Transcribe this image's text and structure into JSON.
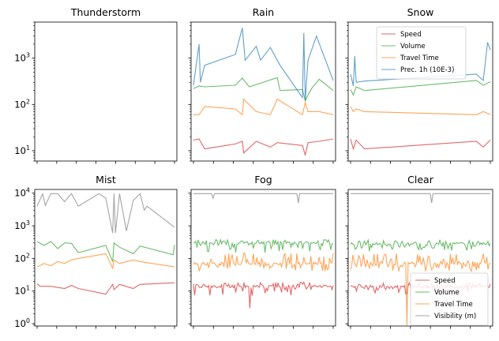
{
  "colors": {
    "Speed": "#d62728",
    "Volume": "#2ca02c",
    "Travel Time": "#ff7f0e",
    "Prec. 1h (10E-3)": "#1f77b4",
    "Visibility (m)": "#7f7f7f"
  },
  "chart_data": [
    {
      "type": "line",
      "title": "Thunderstorm",
      "yscale": "log",
      "ylim": [
        6,
        6000
      ],
      "ytick_labels": [
        "10^1",
        "10^2",
        "10^3"
      ],
      "series": []
    },
    {
      "type": "line",
      "title": "Rain",
      "yscale": "log",
      "ylim": [
        6,
        6000
      ],
      "series": [
        {
          "name": "Speed",
          "x": [
            0,
            0.04,
            0.08,
            0.3,
            0.35,
            0.36,
            0.45,
            0.55,
            0.6,
            0.78,
            0.8,
            0.82,
            0.9,
            1.0
          ],
          "values": [
            17,
            18,
            11,
            14,
            16,
            9,
            16,
            12,
            15,
            13,
            8,
            15,
            16,
            18
          ]
        },
        {
          "name": "Volume",
          "x": [
            0,
            0.04,
            0.08,
            0.3,
            0.35,
            0.4,
            0.6,
            0.62,
            0.78,
            0.8,
            0.82,
            0.85,
            0.9,
            1.0
          ],
          "values": [
            220,
            250,
            240,
            260,
            370,
            240,
            380,
            200,
            210,
            120,
            160,
            230,
            350,
            200
          ]
        },
        {
          "name": "Travel Time",
          "x": [
            0,
            0.04,
            0.08,
            0.3,
            0.35,
            0.36,
            0.45,
            0.55,
            0.6,
            0.78,
            0.8,
            0.82,
            0.9,
            1.0
          ],
          "values": [
            60,
            60,
            90,
            80,
            60,
            130,
            70,
            60,
            130,
            60,
            110,
            70,
            70,
            60
          ]
        },
        {
          "name": "Prec. 1h (10E-3)",
          "x": [
            0,
            0.04,
            0.05,
            0.08,
            0.3,
            0.35,
            0.37,
            0.45,
            0.48,
            0.55,
            0.62,
            0.78,
            0.79,
            0.8,
            0.82,
            0.88,
            1.0
          ],
          "values": [
            260,
            2000,
            300,
            700,
            1200,
            4500,
            900,
            1800,
            900,
            1700,
            700,
            140,
            3500,
            120,
            900,
            3000,
            330
          ]
        }
      ]
    },
    {
      "type": "line",
      "title": "Snow",
      "yscale": "log",
      "ylim": [
        6,
        6000
      ],
      "legend": [
        "Speed",
        "Volume",
        "Travel Time",
        "Prec. 1h (10E-3)"
      ],
      "legend_loc": "upper center",
      "series": [
        {
          "name": "Speed",
          "x": [
            0,
            0.02,
            0.04,
            0.1,
            0.9,
            0.95,
            1.0
          ],
          "values": [
            18,
            11,
            17,
            11,
            16,
            12,
            17
          ]
        },
        {
          "name": "Volume",
          "x": [
            0,
            0.02,
            0.04,
            0.1,
            0.9,
            0.95,
            1.0
          ],
          "values": [
            210,
            160,
            240,
            200,
            330,
            260,
            310
          ]
        },
        {
          "name": "Travel Time",
          "x": [
            0,
            0.02,
            0.04,
            0.1,
            0.9,
            0.95,
            1.0
          ],
          "values": [
            90,
            70,
            80,
            70,
            60,
            70,
            60
          ]
        },
        {
          "name": "Prec. 1h (10E-3)",
          "x": [
            0,
            0.02,
            0.03,
            0.04,
            0.1,
            0.9,
            0.95,
            0.98,
            1.0
          ],
          "values": [
            450,
            250,
            1100,
            300,
            320,
            450,
            330,
            2200,
            1500
          ]
        }
      ]
    },
    {
      "type": "line",
      "title": "Mist",
      "yscale": "log",
      "ylim": [
        0.85,
        13000
      ],
      "ytick_labels": [
        "10^0",
        "10^1",
        "10^2",
        "10^3",
        "10^4"
      ],
      "series": [
        {
          "name": "Speed",
          "x": [
            0,
            0.02,
            0.1,
            0.2,
            0.25,
            0.3,
            0.5,
            0.55,
            0.56,
            0.6,
            0.7,
            0.75,
            1.0
          ],
          "values": [
            17,
            14,
            14,
            12,
            15,
            12,
            8,
            16,
            11,
            16,
            12,
            16,
            18
          ]
        },
        {
          "name": "Volume",
          "x": [
            0,
            0.05,
            0.1,
            0.15,
            0.2,
            0.25,
            0.3,
            0.5,
            0.55,
            0.56,
            0.6,
            0.7,
            0.75,
            0.99,
            1.0
          ],
          "values": [
            330,
            250,
            330,
            200,
            300,
            290,
            150,
            250,
            80,
            300,
            220,
            140,
            240,
            130,
            260
          ]
        },
        {
          "name": "Travel Time",
          "x": [
            0,
            0.05,
            0.1,
            0.15,
            0.2,
            0.25,
            0.3,
            0.5,
            0.55,
            0.56,
            0.6,
            0.7,
            0.75,
            1.0
          ],
          "values": [
            55,
            70,
            60,
            80,
            70,
            90,
            100,
            140,
            50,
            90,
            70,
            90,
            80,
            55
          ]
        },
        {
          "name": "Visibility (m)",
          "x": [
            0,
            0.04,
            0.06,
            0.1,
            0.15,
            0.2,
            0.25,
            0.3,
            0.45,
            0.5,
            0.55,
            0.56,
            0.57,
            0.6,
            0.65,
            0.7,
            0.75,
            0.78,
            0.8,
            1.0
          ],
          "values": [
            4000,
            9500,
            4200,
            9700,
            9700,
            5500,
            9700,
            4000,
            9700,
            7000,
            600,
            9700,
            600,
            9700,
            700,
            6000,
            9700,
            3000,
            4000,
            900
          ]
        }
      ]
    },
    {
      "type": "line",
      "title": "Fog",
      "yscale": "log",
      "ylim": [
        0.85,
        13000
      ],
      "series": [
        {
          "name": "Speed",
          "pattern": "dense",
          "base": 14,
          "low": 7,
          "high": 19,
          "dips": [
            {
              "x": 0.4,
              "value": 3
            }
          ]
        },
        {
          "name": "Volume",
          "pattern": "dense",
          "base": 300,
          "low": 150,
          "high": 380
        },
        {
          "name": "Travel Time",
          "pattern": "dense",
          "base": 70,
          "low": 40,
          "high": 150
        },
        {
          "name": "Visibility (m)",
          "x": [
            0,
            0.13,
            0.14,
            0.15,
            0.74,
            0.75,
            0.76,
            1.0
          ],
          "values": [
            9700,
            9700,
            7000,
            9700,
            9700,
            5000,
            9700,
            9700
          ]
        }
      ]
    },
    {
      "type": "line",
      "title": "Clear",
      "yscale": "log",
      "ylim": [
        0.85,
        13000
      ],
      "legend": [
        "Speed",
        "Volume",
        "Travel Time",
        "Visibility (m)"
      ],
      "legend_loc": "lower right",
      "series": [
        {
          "name": "Speed",
          "pattern": "dense",
          "base": 14,
          "low": 8,
          "high": 18
        },
        {
          "name": "Volume",
          "pattern": "dense",
          "base": 280,
          "low": 150,
          "high": 380
        },
        {
          "name": "Travel Time",
          "pattern": "dense",
          "base": 70,
          "low": 40,
          "high": 140,
          "dips": [
            {
              "x": 0.4,
              "value": 0.9
            }
          ]
        },
        {
          "name": "Visibility (m)",
          "x": [
            0,
            0.57,
            0.58,
            0.59,
            1.0
          ],
          "values": [
            9700,
            9700,
            5000,
            9700,
            9700
          ]
        }
      ]
    }
  ]
}
